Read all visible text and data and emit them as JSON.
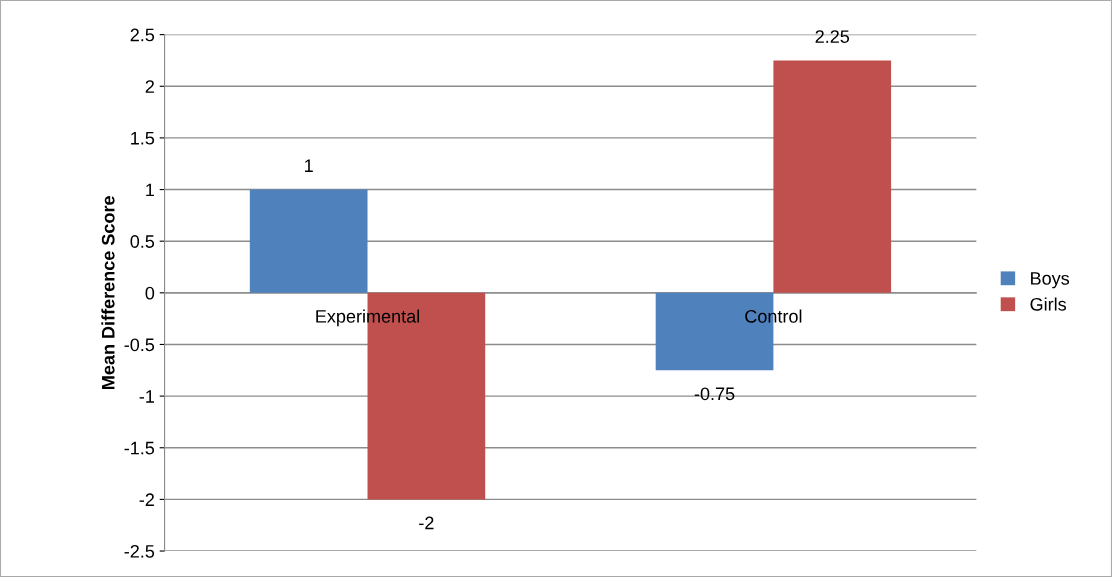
{
  "chart_data": {
    "type": "bar",
    "ylabel": "Mean Difference Score",
    "categories": [
      "Experimental",
      "Control"
    ],
    "series": [
      {
        "name": "Boys",
        "color": "#4f81bd",
        "values": [
          1,
          -0.75
        ]
      },
      {
        "name": "Girls",
        "color": "#c0504d",
        "values": [
          -2,
          2.25
        ]
      }
    ],
    "ylim": [
      -2.5,
      2.5
    ],
    "yticks": [
      2.5,
      2,
      1.5,
      1,
      0.5,
      0,
      -0.5,
      -1,
      -1.5,
      -2,
      -2.5
    ],
    "grid": "y",
    "legend": "right",
    "data_labels": true
  }
}
